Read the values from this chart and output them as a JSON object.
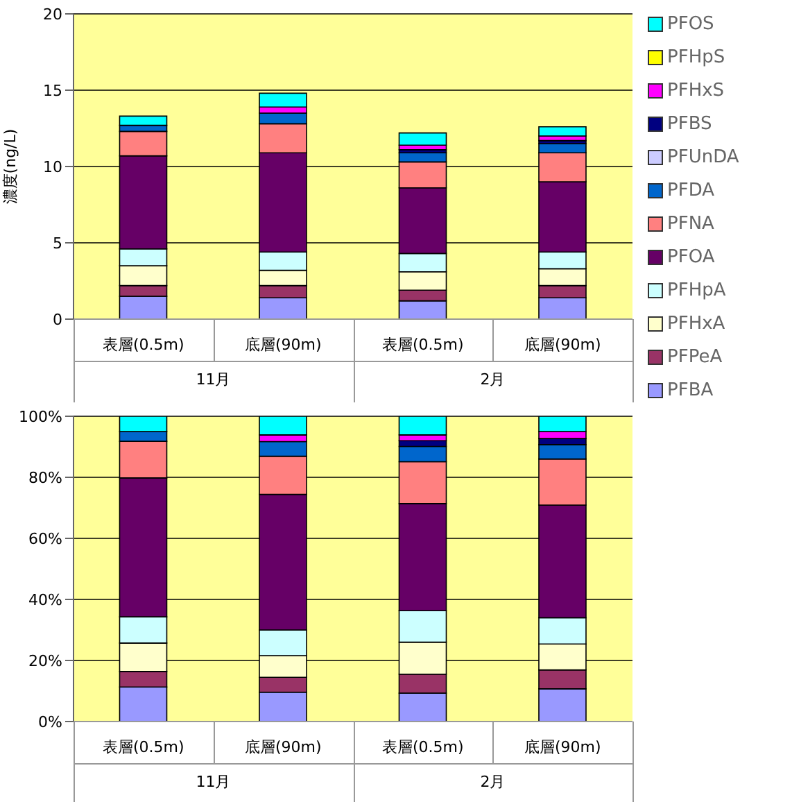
{
  "chart_data": [
    {
      "type": "bar",
      "stacked": true,
      "ylabel": "濃度(ng/L)",
      "categories": [
        "表層(0.5m)",
        "底層(90m)",
        "表層(0.5m)",
        "底層(90m)"
      ],
      "annotations": [
        "11月",
        "2月"
      ],
      "ylim": [
        0,
        20
      ],
      "yticks": [
        0,
        5,
        10,
        15,
        20
      ],
      "grid": "y",
      "legend": "right",
      "series": [
        {
          "name": "PFBA",
          "color": "#9999ff",
          "values": [
            1.5,
            1.4,
            1.2,
            1.4
          ]
        },
        {
          "name": "PFPeA",
          "color": "#993366",
          "values": [
            0.7,
            0.8,
            0.7,
            0.8
          ]
        },
        {
          "name": "PFHxA",
          "color": "#ffffcc",
          "values": [
            1.3,
            1.0,
            1.2,
            1.1
          ]
        },
        {
          "name": "PFHpA",
          "color": "#ccffff",
          "values": [
            1.1,
            1.2,
            1.2,
            1.1
          ]
        },
        {
          "name": "PFOA",
          "color": "#660066",
          "values": [
            6.1,
            6.5,
            4.3,
            4.6
          ]
        },
        {
          "name": "PFNA",
          "color": "#ff8080",
          "values": [
            1.6,
            1.9,
            1.7,
            1.9
          ]
        },
        {
          "name": "PFDA",
          "color": "#0066cc",
          "values": [
            0.4,
            0.7,
            0.6,
            0.6
          ]
        },
        {
          "name": "PFUnDA",
          "color": "#ccccff",
          "values": [
            0,
            0,
            0,
            0
          ]
        },
        {
          "name": "PFBS",
          "color": "#000080",
          "values": [
            0,
            0,
            0.2,
            0.2
          ]
        },
        {
          "name": "PFHxS",
          "color": "#ff00ff",
          "values": [
            0,
            0.4,
            0.3,
            0.3
          ]
        },
        {
          "name": "PFHpS",
          "color": "#ffff00",
          "values": [
            0,
            0,
            0,
            0
          ]
        },
        {
          "name": "PFOS",
          "color": "#00ffff",
          "values": [
            0.6,
            0.9,
            0.8,
            0.6
          ]
        }
      ]
    },
    {
      "type": "bar",
      "stacked": true,
      "categories": [
        "表層(0.5m)",
        "底層(90m)",
        "表層(0.5m)",
        "底層(90m)"
      ],
      "annotations": [
        "11月",
        "2月"
      ],
      "ylim": [
        0,
        100
      ],
      "yticks": [
        {
          "value": 0,
          "label": "0%"
        },
        {
          "value": 20,
          "label": "20%"
        },
        {
          "value": 40,
          "label": "40%"
        },
        {
          "value": 60,
          "label": "60%"
        },
        {
          "value": 80,
          "label": "80%"
        },
        {
          "value": 100,
          "label": "100%"
        }
      ],
      "grid": "y",
      "series": [
        {
          "color": "#9999ff",
          "values": [
            11.3,
            9.6,
            9.3,
            10.7
          ]
        },
        {
          "color": "#993366",
          "values": [
            5.1,
            4.9,
            6.2,
            6.2
          ]
        },
        {
          "color": "#ffffcc",
          "values": [
            9.3,
            7.1,
            10.5,
            8.5
          ]
        },
        {
          "color": "#ccffff",
          "values": [
            8.6,
            8.4,
            10.3,
            8.6
          ]
        },
        {
          "color": "#660066",
          "values": [
            45.5,
            44.4,
            35.1,
            36.9
          ]
        },
        {
          "color": "#ff8080",
          "values": [
            12.0,
            12.5,
            13.7,
            15.1
          ]
        },
        {
          "color": "#0066cc",
          "values": [
            3.2,
            4.8,
            5.0,
            4.7
          ]
        },
        {
          "color": "#ccccff",
          "values": [
            0,
            0,
            0,
            0
          ]
        },
        {
          "color": "#000080",
          "values": [
            0,
            0,
            1.9,
            2.0
          ]
        },
        {
          "color": "#ff00ff",
          "values": [
            0,
            2.2,
            1.9,
            2.3
          ]
        },
        {
          "color": "#ffff00",
          "values": [
            0,
            0,
            0,
            0
          ]
        },
        {
          "color": "#00ffff",
          "values": [
            5.0,
            6.1,
            6.1,
            5.0
          ]
        }
      ]
    }
  ]
}
